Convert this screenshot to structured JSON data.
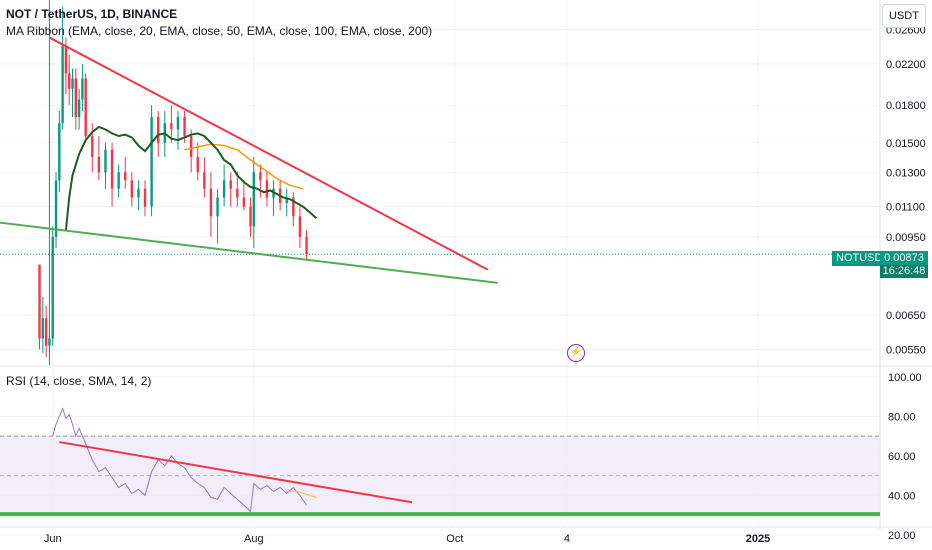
{
  "header": {
    "title": "NOT / TetherUS, 1D, BINANCE",
    "indicator": "MA Ribbon (EMA, close, 20, EMA, close, 50, EMA, close, 100, EMA, close, 200)",
    "currency": "USDT"
  },
  "rsi_header": "RSI (14, close, SMA, 14, 2)",
  "price_tag": {
    "symbol": "NOTUSDT",
    "price": "0.00873",
    "countdown": "16:26:48"
  },
  "flash_icon": "lightning-icon",
  "colors": {
    "up": "#089981",
    "down": "#f23645",
    "trendline_red": "#f23645",
    "trendline_green": "#4caf50",
    "ema_fast": "#1b5e20",
    "ema_slow": "#ff9800",
    "rsi": "#9575cd",
    "rsi_band": "#ede7f6"
  },
  "chart_data": [
    {
      "type": "candlestick",
      "title": "NOT / TetherUS, 1D, BINANCE",
      "y_scale": "log",
      "ylim": [
        0.0051,
        0.03
      ],
      "y_ticks": [
        "0.02600",
        "0.02200",
        "0.01800",
        "0.01500",
        "0.01300",
        "0.01100",
        "0.00950",
        "0.00650",
        "0.00550"
      ],
      "x_ticks": [
        "Jun",
        "Aug",
        "Oct",
        "4",
        "2025"
      ],
      "x_tick_days": [
        0,
        61,
        122,
        156,
        214
      ],
      "xlim_days": [
        -16,
        251
      ],
      "listing_day": -1,
      "last_price": 0.00873,
      "candles": [
        [
          -4,
          0.0083,
          0.0083,
          0.0055,
          0.0058
        ],
        [
          -3,
          0.0058,
          0.0071,
          0.0054,
          0.0064
        ],
        [
          -2,
          0.0064,
          0.0068,
          0.0053,
          0.0056
        ],
        [
          -1,
          0.0056,
          0.0061,
          0.0052,
          0.0058
        ],
        [
          0,
          0.0058,
          0.01,
          0.0056,
          0.0095
        ],
        [
          1,
          0.0095,
          0.013,
          0.009,
          0.0125
        ],
        [
          2,
          0.0125,
          0.0175,
          0.0118,
          0.0165
        ],
        [
          3,
          0.0165,
          0.029,
          0.016,
          0.024
        ],
        [
          4,
          0.024,
          0.025,
          0.019,
          0.021
        ],
        [
          5,
          0.021,
          0.023,
          0.018,
          0.0195
        ],
        [
          6,
          0.0195,
          0.0215,
          0.017,
          0.0205
        ],
        [
          7,
          0.0205,
          0.0215,
          0.016,
          0.017
        ],
        [
          8,
          0.017,
          0.0195,
          0.016,
          0.0185
        ],
        [
          9,
          0.0185,
          0.022,
          0.0175,
          0.0205
        ],
        [
          10,
          0.0205,
          0.021,
          0.015,
          0.0155
        ],
        [
          12,
          0.0155,
          0.0165,
          0.013,
          0.014
        ],
        [
          14,
          0.014,
          0.0155,
          0.0125,
          0.013
        ],
        [
          16,
          0.013,
          0.015,
          0.012,
          0.0145
        ],
        [
          18,
          0.0145,
          0.015,
          0.011,
          0.012
        ],
        [
          20,
          0.012,
          0.0135,
          0.0115,
          0.013
        ],
        [
          22,
          0.013,
          0.014,
          0.012,
          0.0125
        ],
        [
          24,
          0.0125,
          0.013,
          0.011,
          0.0115
        ],
        [
          26,
          0.0115,
          0.0125,
          0.0108,
          0.012
        ],
        [
          28,
          0.012,
          0.0125,
          0.0105,
          0.011
        ],
        [
          30,
          0.011,
          0.018,
          0.0105,
          0.017
        ],
        [
          32,
          0.017,
          0.0175,
          0.014,
          0.015
        ],
        [
          34,
          0.015,
          0.0175,
          0.014,
          0.0165
        ],
        [
          36,
          0.0165,
          0.018,
          0.015,
          0.016
        ],
        [
          38,
          0.016,
          0.0175,
          0.0145,
          0.017
        ],
        [
          40,
          0.017,
          0.0175,
          0.015,
          0.0155
        ],
        [
          42,
          0.0155,
          0.016,
          0.013,
          0.014
        ],
        [
          44,
          0.014,
          0.015,
          0.0125,
          0.013
        ],
        [
          46,
          0.013,
          0.014,
          0.0115,
          0.012
        ],
        [
          48,
          0.012,
          0.013,
          0.0095,
          0.0105
        ],
        [
          50,
          0.0105,
          0.012,
          0.0092,
          0.0115
        ],
        [
          52,
          0.0115,
          0.0135,
          0.011,
          0.0125
        ],
        [
          54,
          0.0125,
          0.013,
          0.011,
          0.012
        ],
        [
          56,
          0.012,
          0.013,
          0.011,
          0.0115
        ],
        [
          58,
          0.0115,
          0.0125,
          0.0108,
          0.011
        ],
        [
          60,
          0.011,
          0.0115,
          0.0095,
          0.01
        ],
        [
          61,
          0.01,
          0.014,
          0.009,
          0.013
        ],
        [
          63,
          0.013,
          0.0135,
          0.0115,
          0.0125
        ],
        [
          65,
          0.0125,
          0.013,
          0.011,
          0.0115
        ],
        [
          67,
          0.0115,
          0.0125,
          0.0105,
          0.012
        ],
        [
          69,
          0.012,
          0.0125,
          0.0108,
          0.0112
        ],
        [
          71,
          0.0112,
          0.012,
          0.0105,
          0.0115
        ],
        [
          73,
          0.0115,
          0.0118,
          0.01,
          0.0105
        ],
        [
          75,
          0.0105,
          0.011,
          0.009,
          0.0095
        ],
        [
          77,
          0.0095,
          0.0098,
          0.0085,
          0.00873
        ]
      ],
      "ema_fast": {
        "days": [
          4,
          5,
          6,
          8,
          10,
          12,
          14,
          16,
          18,
          20,
          22,
          24,
          26,
          28,
          30,
          32,
          34,
          36,
          38,
          40,
          42,
          44,
          46,
          48,
          50,
          52,
          54,
          56,
          58,
          60,
          62,
          64,
          66,
          68,
          70,
          72,
          74,
          76,
          78,
          80
        ],
        "values": [
          0.0098,
          0.0115,
          0.0128,
          0.0142,
          0.0152,
          0.0158,
          0.0162,
          0.016,
          0.0157,
          0.0155,
          0.0156,
          0.0154,
          0.0148,
          0.0144,
          0.015,
          0.0156,
          0.0157,
          0.0153,
          0.0152,
          0.0154,
          0.0156,
          0.0157,
          0.0155,
          0.015,
          0.0145,
          0.0138,
          0.0135,
          0.0128,
          0.0124,
          0.0121,
          0.012,
          0.0118,
          0.0119,
          0.0117,
          0.0115,
          0.0114,
          0.0112,
          0.011,
          0.0107,
          0.0104
        ]
      },
      "ema_slow": {
        "days": [
          40,
          44,
          48,
          52,
          56,
          60,
          64,
          68,
          72,
          76
        ],
        "values": [
          0.0145,
          0.0147,
          0.0149,
          0.0148,
          0.0145,
          0.0138,
          0.0132,
          0.0126,
          0.0122,
          0.012
        ]
      },
      "trendlines": [
        {
          "color": "red",
          "points": [
            [
              -1,
              0.025
            ],
            [
              132,
              0.0081
            ]
          ]
        },
        {
          "color": "green",
          "points": [
            [
              -32,
              0.0105
            ],
            [
              135,
              0.0076
            ]
          ]
        }
      ]
    },
    {
      "type": "line",
      "title": "RSI (14, close, SMA, 14, 2)",
      "ylim": [
        25,
        105
      ],
      "y_ticks": [
        100,
        80,
        60,
        40,
        20
      ],
      "y_tick_labels": [
        "100.00",
        "80.00",
        "60.00",
        "40.00",
        "20.00"
      ],
      "band": [
        30,
        70
      ],
      "rsi": {
        "days": [
          0,
          1,
          2,
          3,
          4,
          5,
          6,
          7,
          8,
          10,
          12,
          14,
          16,
          18,
          20,
          22,
          24,
          26,
          28,
          30,
          32,
          34,
          36,
          38,
          40,
          42,
          44,
          46,
          48,
          50,
          52,
          54,
          56,
          58,
          60,
          61,
          63,
          65,
          67,
          69,
          71,
          73,
          75,
          77
        ],
        "values": [
          70,
          76,
          80,
          84,
          79,
          81,
          76,
          70,
          74,
          66,
          58,
          52,
          54,
          49,
          44,
          46,
          41,
          43,
          40,
          52,
          58,
          55,
          60,
          56,
          54,
          49,
          46,
          44,
          39,
          38,
          44,
          41,
          38,
          35,
          32,
          46,
          43,
          45,
          42,
          44,
          41,
          44,
          40,
          35
        ]
      },
      "rsi_sma": {
        "days": [
          70,
          74,
          78,
          80
        ],
        "values": [
          42,
          42,
          40,
          39
        ]
      },
      "trendlines": [
        {
          "color": "red",
          "points": [
            [
              2,
              67
            ],
            [
              109,
              36.5
            ]
          ]
        },
        {
          "color": "green",
          "points": [
            [
              -240,
              30.5
            ],
            [
              320,
              30.5
            ]
          ]
        }
      ]
    }
  ]
}
